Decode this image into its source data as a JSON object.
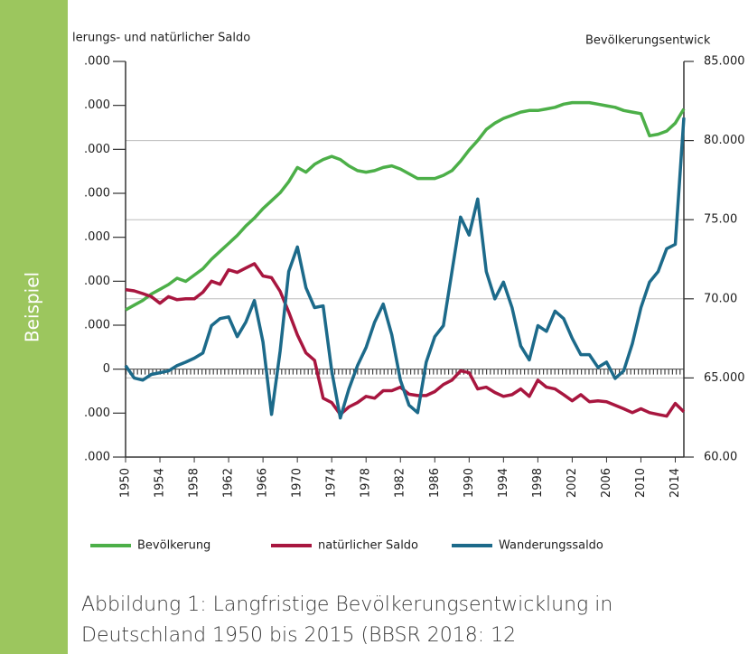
{
  "sidebar": {
    "label": "Beispiel"
  },
  "caption": {
    "lines": [
      "Abbildung 1: Langfristige Bevölkerungsentwicklung in",
      "Deutschland 1950 bis 2015 (BBSR 2018: 12"
    ]
  },
  "chart_data": {
    "type": "line",
    "y_label": "lerungs- und natürlicher Saldo",
    "y2_label": "Bevölkerungsentwick",
    "x": [
      1950,
      1951,
      1952,
      1953,
      1954,
      1955,
      1956,
      1957,
      1958,
      1959,
      1960,
      1961,
      1962,
      1963,
      1964,
      1965,
      1966,
      1967,
      1968,
      1969,
      1970,
      1971,
      1972,
      1973,
      1974,
      1975,
      1976,
      1977,
      1978,
      1979,
      1980,
      1981,
      1982,
      1983,
      1984,
      1985,
      1986,
      1987,
      1988,
      1989,
      1990,
      1991,
      1992,
      1993,
      1994,
      1995,
      1996,
      1997,
      1998,
      1999,
      2000,
      2001,
      2002,
      2003,
      2004,
      2005,
      2006,
      2007,
      2008,
      2009,
      2010,
      2011,
      2012,
      2013,
      2014,
      2015
    ],
    "xlim": [
      1950,
      2015
    ],
    "xticks": [
      1950,
      1954,
      1958,
      1962,
      1966,
      1970,
      1974,
      1978,
      1982,
      1986,
      1990,
      1994,
      1998,
      2002,
      2006,
      2010,
      2014
    ],
    "ylim": [
      -200000,
      700000
    ],
    "yticks": [
      {
        "value": -200000,
        "label": ".000"
      },
      {
        "value": -100000,
        "label": ".000"
      },
      0,
      {
        "value": 100000,
        "label": ".000"
      },
      {
        "value": 200000,
        "label": ".000"
      },
      {
        "value": 300000,
        "label": ".000"
      },
      {
        "value": 400000,
        "label": ".000"
      },
      {
        "value": 500000,
        "label": ".000"
      },
      {
        "value": 600000,
        "label": ".000"
      },
      {
        "value": 700000,
        "label": ".000"
      }
    ],
    "y2lim": [
      60000,
      85000
    ],
    "y2ticks": [
      {
        "value": 60000,
        "label": "60.00"
      },
      {
        "value": 65000,
        "label": "65.000"
      },
      {
        "value": 70000,
        "label": "70.00"
      },
      {
        "value": 75000,
        "label": "75.00"
      },
      {
        "value": 80000,
        "label": "80.000"
      },
      {
        "value": 85000,
        "label": "85.000"
      }
    ],
    "legend": "bottom",
    "series": [
      {
        "name": "Bevölkerung",
        "color": "#4caf48",
        "axis": "y2",
        "values": [
          69300,
          69600,
          69900,
          70300,
          70600,
          70900,
          71300,
          71100,
          71500,
          71900,
          72500,
          73000,
          73500,
          74000,
          74600,
          75100,
          75700,
          76200,
          76700,
          77400,
          78300,
          78000,
          78500,
          78800,
          79000,
          78800,
          78400,
          78100,
          78000,
          78100,
          78300,
          78400,
          78200,
          77900,
          77600,
          77600,
          77600,
          77800,
          78100,
          78700,
          79400,
          80000,
          80700,
          81100,
          81400,
          81600,
          81800,
          81900,
          81900,
          82000,
          82100,
          82300,
          82400,
          82400,
          82400,
          82300,
          82200,
          82100,
          81900,
          81800,
          81700,
          80300,
          80400,
          80600,
          81100,
          82000
        ]
      },
      {
        "name": "natürlicher Saldo",
        "color": "#a8163f",
        "values": [
          181000,
          178000,
          172000,
          165000,
          150000,
          165000,
          158000,
          160000,
          160000,
          175000,
          200000,
          193000,
          226000,
          220000,
          230000,
          240000,
          212000,
          208000,
          177000,
          130000,
          78000,
          37000,
          20000,
          -66000,
          -76000,
          -103000,
          -86000,
          -76000,
          -62000,
          -66000,
          -49000,
          -49000,
          -41000,
          -57000,
          -60000,
          -60000,
          -51000,
          -35000,
          -25000,
          -4000,
          -8000,
          -45000,
          -41000,
          -53000,
          -62000,
          -58000,
          -45000,
          -62000,
          -25000,
          -41000,
          -45000,
          -58000,
          -72000,
          -58000,
          -74000,
          -72000,
          -74000,
          -82000,
          -90000,
          -99000,
          -90000,
          -99000,
          -103000,
          -107000,
          -78000,
          -97000
        ]
      },
      {
        "name": "Wanderungssaldo",
        "color": "#1c6a8a",
        "values": [
          8000,
          -20000,
          -25000,
          -12000,
          -8000,
          -4000,
          8000,
          16000,
          25000,
          37000,
          99000,
          115000,
          119000,
          74000,
          107000,
          156000,
          62000,
          -103000,
          41000,
          222000,
          278000,
          185000,
          140000,
          144000,
          -4000,
          -111000,
          -45000,
          8000,
          49000,
          107000,
          148000,
          78000,
          -25000,
          -82000,
          -99000,
          16000,
          74000,
          99000,
          222000,
          346000,
          305000,
          387000,
          222000,
          160000,
          198000,
          140000,
          53000,
          21000,
          99000,
          86000,
          132000,
          115000,
          70000,
          33000,
          33000,
          4000,
          16000,
          -21000,
          -4000,
          58000,
          140000,
          198000,
          222000,
          274000,
          284000,
          572000
        ]
      }
    ]
  }
}
